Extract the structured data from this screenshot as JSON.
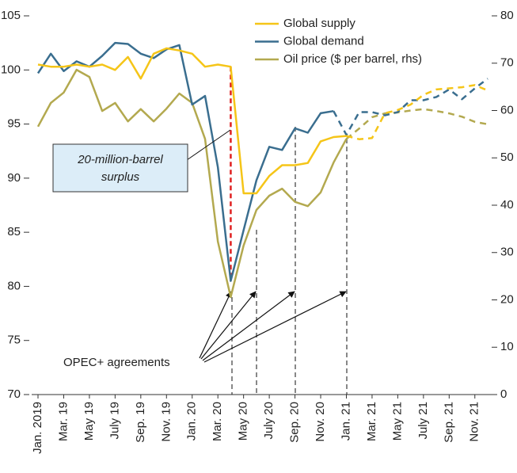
{
  "chart_data": {
    "type": "line",
    "categories": [
      "Jan. 2019",
      null,
      "Mar. 19",
      null,
      "May 19",
      null,
      "July 19",
      null,
      "Sep. 19",
      null,
      "Nov. 19",
      null,
      "Jan. 20",
      null,
      "Mar. 20",
      null,
      "May 20",
      null,
      "July 20",
      null,
      "Sep. 20",
      null,
      "Nov. 20",
      null,
      "Jan. 21",
      null,
      "Mar. 21",
      null,
      "May 21",
      null,
      "July 21",
      null,
      "Sep. 21",
      null,
      "Nov. 21",
      null
    ],
    "series": [
      {
        "name": "Global supply",
        "color": "#f5c518",
        "dash_after": 24,
        "values": [
          100.5,
          100.3,
          100.3,
          100.5,
          100.3,
          100.5,
          100.0,
          101.2,
          99.2,
          101.5,
          102.0,
          101.8,
          101.5,
          100.3,
          100.5,
          100.3,
          88.6,
          88.6,
          90.2,
          91.2,
          91.2,
          91.4,
          93.4,
          93.8,
          93.9,
          93.6,
          93.7,
          96.0,
          96.3,
          96.8,
          97.7,
          98.2,
          98.3,
          98.4,
          98.6,
          98.1
        ]
      },
      {
        "name": "Global demand",
        "color": "#3a6e8f",
        "dash_after": 23,
        "values": [
          99.7,
          101.5,
          99.9,
          100.8,
          100.3,
          101.3,
          102.5,
          102.4,
          101.5,
          101.1,
          101.9,
          102.3,
          96.8,
          97.6,
          91.0,
          80.5,
          85.2,
          89.8,
          92.9,
          92.6,
          94.6,
          94.2,
          96.0,
          96.2,
          94.0,
          96.1,
          96.1,
          95.8,
          96.1,
          97.2,
          97.2,
          97.5,
          98.2,
          97.3,
          98.3,
          99.2
        ]
      },
      {
        "name": "Oil price ($ per barrel, rhs)",
        "color": "#b3a94f",
        "axis": "y2",
        "dash_after": 24,
        "values": [
          56.6,
          61.6,
          63.8,
          68.6,
          67.1,
          59.9,
          61.6,
          57.7,
          60.3,
          57.7,
          60.4,
          63.6,
          61.6,
          54.0,
          32.3,
          20.6,
          31.5,
          39.0,
          42.0,
          43.5,
          40.7,
          39.8,
          42.7,
          49.0,
          54.0,
          56.2,
          58.6,
          59.4,
          59.6,
          60.0,
          60.3,
          59.9,
          59.4,
          58.7,
          57.6,
          57.1
        ]
      }
    ],
    "ylim": [
      70,
      105
    ],
    "yticks": [
      70,
      75,
      80,
      85,
      90,
      95,
      100,
      105
    ],
    "y2lim": [
      0,
      80
    ],
    "y2ticks": [
      0,
      10,
      20,
      30,
      40,
      50,
      60,
      70,
      80
    ],
    "legend": "top",
    "annotations": {
      "surplus_box": [
        "20-million-barrel",
        "surplus"
      ],
      "opec": "OPEC+ agreements"
    }
  }
}
